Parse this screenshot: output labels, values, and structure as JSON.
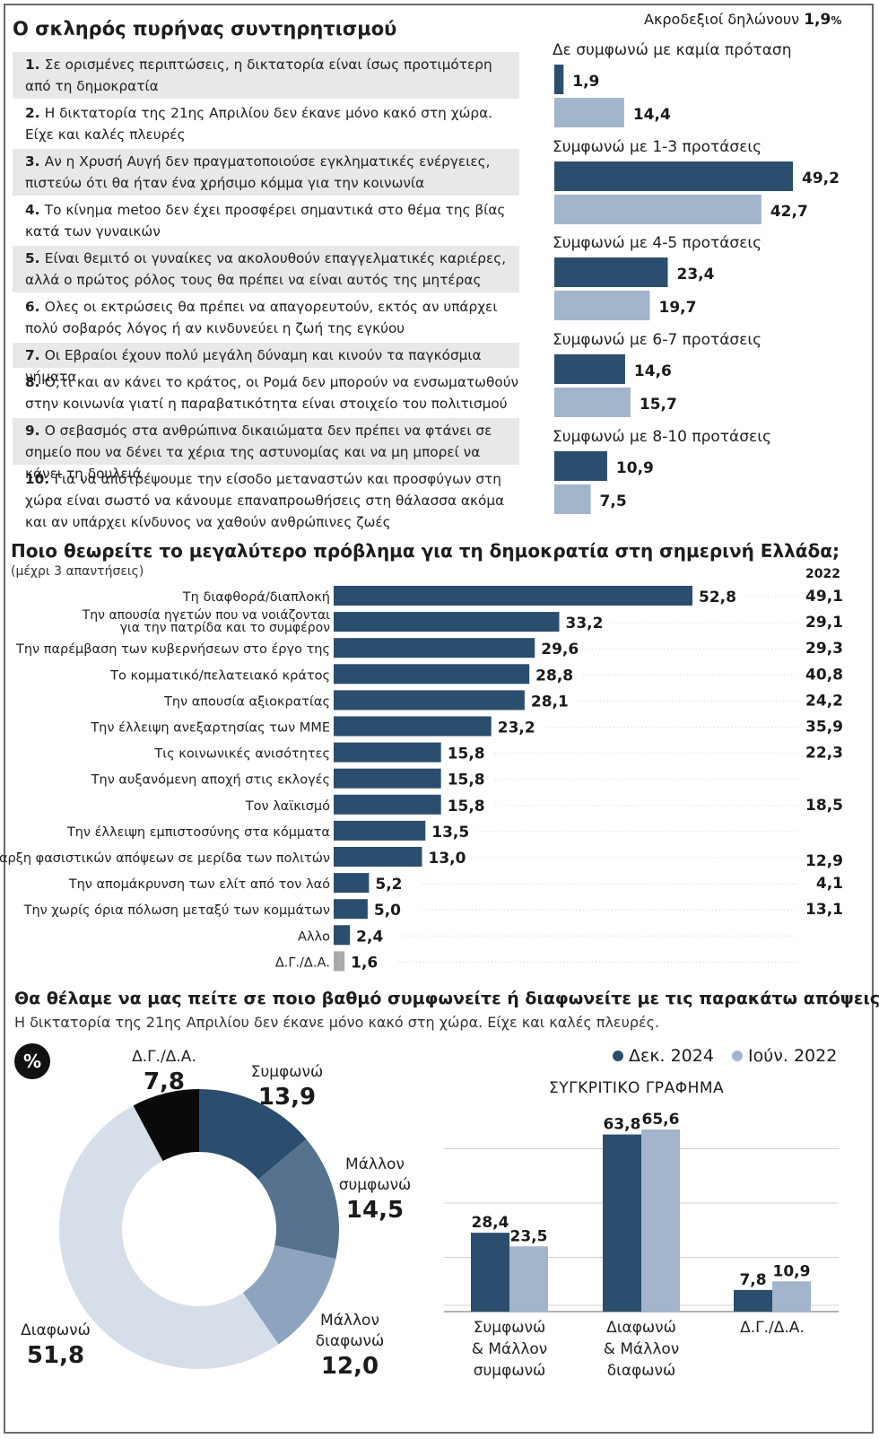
{
  "section1": {
    "title": "Ο σκληρός πυρήνας συντηρητισμού",
    "extreme_right_label": "Ακροδεξιοί δηλώνουν",
    "extreme_right_value": "1,9",
    "extreme_right_unit": "%",
    "statements": [
      {
        "num": "1.",
        "text": "Σε ορισμένες περιπτώσεις, η δικτατορία είναι ίσως προτιμότερη από τη δημοκρατία"
      },
      {
        "num": "2.",
        "text": "Η δικτατορία της 21ης Απριλίου δεν έκανε μόνο κακό στη χώρα. Είχε και καλές πλευρές"
      },
      {
        "num": "3.",
        "text": "Αν η Χρυσή Αυγή δεν πραγματοποιούσε εγκληματικές ενέργειες, πιστεύω ότι θα ήταν ένα χρήσιμο κόμμα για την κοινωνία"
      },
      {
        "num": "4.",
        "text": "Το κίνημα metoo δεν έχει προσφέρει σημαντικά στο θέμα της βίας κατά των γυναικών"
      },
      {
        "num": "5.",
        "text": "Είναι θεμιτό οι γυναίκες να ακολουθούν επαγγελματικές καριέρες, αλλά ο πρώτος ρόλος τους θα πρέπει να είναι αυτός της μητέρας"
      },
      {
        "num": "6.",
        "text": "Ολες οι εκτρώσεις θα πρέπει να απαγορευτούν, εκτός αν υπάρχει πολύ σοβαρός λόγος ή αν κινδυνεύει η ζωή της εγκύου"
      },
      {
        "num": "7.",
        "text": "Οι Εβραίοι έχουν πολύ μεγάλη δύναμη και κινούν τα παγκόσμια νήματα"
      },
      {
        "num": "8.",
        "text": "Ο,τι και αν κάνει το κράτος, οι Ρομά δεν μπορούν να ενσωματωθούν στην κοινωνία γιατί η παραβατικότητα είναι στοιχείο του πολιτισμού τους"
      },
      {
        "num": "9.",
        "text": "Ο σεβασμός στα ανθρώπινα δικαιώματα δεν πρέπει να φτάνει σε σημείο που να δένει τα χέρια της αστυνομίας και να μη μπορεί να κάνει τη δουλειά"
      },
      {
        "num": "10.",
        "text": "Για να αποτρέψουμε την είσοδο μεταναστών και προσφύγων στη χώρα είναι σωστό να κάνουμε επαναπροωθήσεις στη θάλασσα ακόμα και αν υπάρχει κίνδυνος να χαθούν ανθρώπινες ζωές"
      }
    ]
  },
  "colors": {
    "dark": "#2b4d6e",
    "light": "#a3b5cb",
    "grey": "#a8a8a8",
    "mid1": "#56728f",
    "mid2": "#8ea4be",
    "pale": "#d6dfe9",
    "black": "#0a0a0a"
  },
  "section2": {
    "title": "Ποιο θεωρείτε το μεγαλύτερο πρόβλημα για τη δημοκρατία στη σημερινή Ελλάδα;",
    "subtitle": "(μέχρι 3 απαντήσεις)",
    "year_header": "2022"
  },
  "section3": {
    "title": "Θα θέλαμε να μας πείτε σε ποιο βαθμό συμφωνείτε ή διαφωνείτε με τις παρακάτω απόψεις:",
    "subtitle": "Η δικτατορία της 21ης Απριλίου δεν έκανε μόνο κακό στη χώρα. Είχε και καλές πλευρές.",
    "percent_badge": "%",
    "compare_title": "ΣΥΓΚΡΙΤΙΚΟ ΓΡΑΦΗΜΑ",
    "legend": [
      "Δεκ. 2024",
      "Ιούν. 2022"
    ]
  },
  "chart_data": [
    {
      "type": "bar",
      "orientation": "horizontal",
      "categories": [
        "Δε συμφωνώ με καμία πρόταση",
        "Συμφωνώ με 1-3 προτάσεις",
        "Συμφωνώ με 4-5 προτάσεις",
        "Συμφωνώ με 6-7 προτάσεις",
        "Συμφωνώ με 8-10 προτάσεις"
      ],
      "series": [
        {
          "values": [
            1.9,
            49.2,
            23.4,
            14.6,
            10.9
          ],
          "labels": [
            "1,9",
            "49,2",
            "23,4",
            "14,6",
            "10,9"
          ],
          "color": "dark"
        },
        {
          "values": [
            14.4,
            42.7,
            19.7,
            15.7,
            7.5
          ],
          "labels": [
            "14,4",
            "42,7",
            "19,7",
            "15,7",
            "7,5"
          ],
          "color": "light"
        }
      ]
    },
    {
      "type": "bar",
      "orientation": "horizontal",
      "categories": [
        [
          "Τη διαφθορά/διαπλοκή"
        ],
        [
          "Την απουσία ηγετών που να νοιάζονται",
          "για την πατρίδα και το συμφέρον"
        ],
        [
          "Την παρέμβαση των κυβερνήσεων στο έργο της"
        ],
        [
          "Το κομματικό/πελατειακό κράτος"
        ],
        [
          "Την απουσία αξιοκρατίας"
        ],
        [
          "Την έλλειψη ανεξαρτησίας των ΜΜΕ"
        ],
        [
          "Τις κοινωνικές ανισότητες"
        ],
        [
          "Την αυξανόμενη αποχή στις εκλογές"
        ],
        [
          "Τον λαϊκισμό"
        ],
        [
          "Την έλλειψη εμπιστοσύνης στα κόμματα"
        ],
        [
          "Την ύπαρξη φασιστικών απόψεων σε μερίδα των πολιτών"
        ],
        [
          "Την απομάκρυνση των ελίτ από τον λαό"
        ],
        [
          "Την χωρίς όρια πόλωση μεταξύ των κομμάτων"
        ],
        [
          "Αλλο"
        ],
        [
          "Δ.Γ./Δ.Α."
        ]
      ],
      "values": [
        52.8,
        33.2,
        29.6,
        28.8,
        28.1,
        23.2,
        15.8,
        15.8,
        15.8,
        13.5,
        13.0,
        5.2,
        5.0,
        2.4,
        1.6
      ],
      "labels": [
        "52,8",
        "33,2",
        "29,6",
        "28,8",
        "28,1",
        "23,2",
        "15,8",
        "15,8",
        "15,8",
        "13,5",
        "13,0",
        "5,2",
        "5,0",
        "2,4",
        "1,6"
      ],
      "values_2022": [
        "49,1",
        "29,1",
        "29,3",
        "40,8",
        "24,2",
        "35,9",
        "22,3",
        "",
        "18,5",
        "",
        "12,9",
        "4,1",
        "13,1",
        "",
        ""
      ]
    },
    {
      "type": "pie",
      "style": "donut",
      "slices": [
        {
          "label": [
            "Συμφωνώ"
          ],
          "value": 13.9,
          "text": "13,9",
          "color": "dark"
        },
        {
          "label": [
            "Μάλλον",
            "συμφωνώ"
          ],
          "value": 14.5,
          "text": "14,5",
          "color": "mid1"
        },
        {
          "label": [
            "Μάλλον",
            "διαφωνώ"
          ],
          "value": 12.0,
          "text": "12,0",
          "color": "mid2"
        },
        {
          "label": [
            "Διαφωνώ"
          ],
          "value": 51.8,
          "text": "51,8",
          "color": "pale"
        },
        {
          "label": [
            "Δ.Γ./Δ.Α."
          ],
          "value": 7.8,
          "text": "7,8",
          "color": "black"
        }
      ]
    },
    {
      "type": "bar",
      "orientation": "vertical",
      "title": "ΣΥΓΚΡΙΤΙΚΟ ΓΡΑΦΗΜΑ",
      "categories": [
        [
          "Συμφωνώ",
          "& Μάλλον",
          "συμφωνώ"
        ],
        [
          "Διαφωνώ",
          "& Μάλλον",
          "διαφωνώ"
        ],
        [
          "Δ.Γ./Δ.Α."
        ]
      ],
      "series": [
        {
          "name": "Δεκ. 2024",
          "values": [
            28.4,
            63.8,
            7.8
          ],
          "labels": [
            "28,4",
            "63,8",
            "7,8"
          ],
          "color": "dark"
        },
        {
          "name": "Ιούν. 2022",
          "values": [
            23.5,
            65.6,
            10.9
          ],
          "labels": [
            "23,5",
            "65,6",
            "10,9"
          ],
          "color": "light"
        }
      ]
    }
  ]
}
